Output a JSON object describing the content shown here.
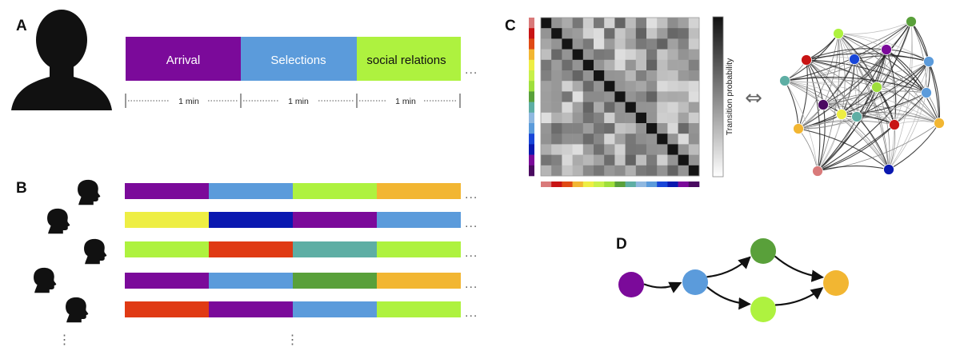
{
  "panels": {
    "a": "A",
    "b": "B",
    "c": "C",
    "d": "D"
  },
  "panel_a": {
    "segments": [
      {
        "label": "Arrival",
        "color": "#7B0A9A",
        "text_dark": false
      },
      {
        "label": "Selections",
        "color": "#5B9BDB",
        "text_dark": false
      },
      {
        "label": "social relations",
        "color": "#AEF23F",
        "text_dark": true
      }
    ],
    "durations": [
      "1 min",
      "1 min",
      "1 min"
    ],
    "ellipsis": "..."
  },
  "panel_b": {
    "rows": [
      [
        "#7B0A9A",
        "#5B9BDB",
        "#AEF23F",
        "#F2B632"
      ],
      [
        "#EEEE44",
        "#0A18B0",
        "#7B0A9A",
        "#5B9BDB"
      ],
      [
        "#AEF23F",
        "#E03A14",
        "#5EAEA4",
        "#AEF23F"
      ],
      [
        "#7B0A9A",
        "#5B9BDB",
        "#59A03A",
        "#F2B632"
      ],
      [
        "#E03A14",
        "#7B0A9A",
        "#5B9BDB",
        "#AEF23F"
      ]
    ],
    "ellipsis": "...",
    "vertical_ellipsis": "⋮"
  },
  "panel_c": {
    "colorbar_label": "Transition probability",
    "equivalence_symbol": "⇔",
    "state_colors": [
      "#D97A7A",
      "#C81414",
      "#E04A14",
      "#F2B632",
      "#EEEE44",
      "#C8F04A",
      "#9FDF3C",
      "#59A03A",
      "#5EAEA4",
      "#8FB8E0",
      "#5B9BDB",
      "#1846D8",
      "#0A18B0",
      "#7B0A9A",
      "#4A0A60"
    ],
    "graph_node_colors": [
      "#59A03A",
      "#AEF23F",
      "#C81414",
      "#1846D8",
      "#7B0A9A",
      "#5B9BDB",
      "#5EAEA4",
      "#9FDF3C",
      "#4A0A60",
      "#5B9BDB",
      "#5EAEA4",
      "#EEEE44",
      "#F2B632",
      "#C81414",
      "#F2B632",
      "#D97A7A",
      "#0A18B0"
    ]
  },
  "panel_d": {
    "nodes": [
      {
        "id": "n1",
        "color": "#7B0A9A"
      },
      {
        "id": "n2",
        "color": "#5B9BDB"
      },
      {
        "id": "n3",
        "color": "#59A03A"
      },
      {
        "id": "n4",
        "color": "#AEF23F"
      },
      {
        "id": "n5",
        "color": "#F2B632"
      }
    ],
    "edges": [
      [
        "n1",
        "n2"
      ],
      [
        "n2",
        "n3"
      ],
      [
        "n2",
        "n4"
      ],
      [
        "n3",
        "n5"
      ],
      [
        "n4",
        "n5"
      ]
    ]
  }
}
